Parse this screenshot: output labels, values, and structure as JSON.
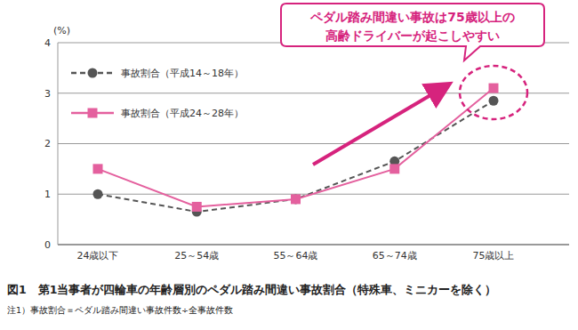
{
  "chart_data": {
    "type": "line",
    "title": "図1　第1当事者が四輪車の年齢層別のペダル踏み間違い事故割合（特殊車、ミニカーを除く）",
    "subtitle": "注1）事故割合＝ペダル踏み間違い事故件数÷全事故件数",
    "ylabel": "(%)",
    "annotations": [
      "ペダル踏み間違い事故は75歳以上の",
      "高齢ドライバーが起こしやすい"
    ],
    "categories": [
      "24歳以下",
      "25～54歳",
      "55～64歳",
      "65～74歳",
      "75歳以上"
    ],
    "series": [
      {
        "name": "事故割合（平成14～18年）",
        "color": "#555555",
        "marker": "circle",
        "line_style": "dashed",
        "values": [
          1.0,
          0.65,
          0.9,
          1.65,
          2.85
        ]
      },
      {
        "name": "事故割合（平成24～28年）",
        "color": "#e4609e",
        "marker": "square",
        "line_style": "solid",
        "values": [
          1.5,
          0.75,
          0.9,
          1.5,
          3.1
        ]
      }
    ],
    "ylim": [
      0,
      4
    ],
    "yticks": [
      0,
      1,
      2,
      3,
      4
    ],
    "grid": true
  }
}
